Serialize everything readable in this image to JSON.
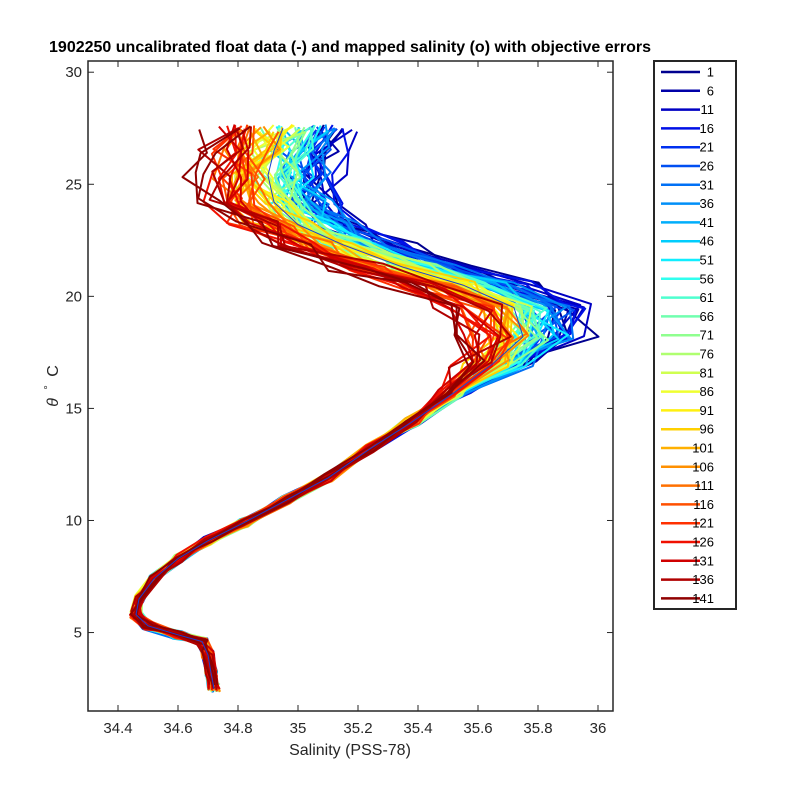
{
  "chart_data": {
    "type": "line",
    "title": "1902250 uncalibrated float data (-) and mapped salinity (o) with objective errors",
    "xlabel": "Salinity (PSS-78)",
    "ylabel_symbol": "θ",
    "ylabel_degree": "°",
    "ylabel_unit": "C",
    "xlim": [
      34.3,
      36.05
    ],
    "ylim": [
      1.5,
      30.5
    ],
    "xticks": [
      34.4,
      34.6,
      34.8,
      35,
      35.2,
      35.4,
      35.6,
      35.8,
      36
    ],
    "xtick_labels": [
      "34.4",
      "34.6",
      "34.8",
      "35",
      "35.2",
      "35.4",
      "35.6",
      "35.8",
      "36"
    ],
    "yticks": [
      5,
      10,
      15,
      20,
      25,
      30
    ],
    "ytick_labels": [
      "5",
      "10",
      "15",
      "20",
      "25",
      "30"
    ],
    "grid": false,
    "legend_position": "outside-right",
    "colormap": "jet",
    "series": [
      {
        "name": "1",
        "color": "#00008f"
      },
      {
        "name": "6",
        "color": "#0000a8"
      },
      {
        "name": "11",
        "color": "#0000c3"
      },
      {
        "name": "16",
        "color": "#0010e6"
      },
      {
        "name": "21",
        "color": "#0030f0"
      },
      {
        "name": "26",
        "color": "#004ff2"
      },
      {
        "name": "31",
        "color": "#0070f5"
      },
      {
        "name": "36",
        "color": "#008ff8"
      },
      {
        "name": "41",
        "color": "#00aefb"
      },
      {
        "name": "46",
        "color": "#00cdfd"
      },
      {
        "name": "51",
        "color": "#10eeff"
      },
      {
        "name": "56",
        "color": "#30ffef"
      },
      {
        "name": "61",
        "color": "#4fffcf"
      },
      {
        "name": "66",
        "color": "#70ffaf"
      },
      {
        "name": "71",
        "color": "#8fff8f"
      },
      {
        "name": "76",
        "color": "#afff70"
      },
      {
        "name": "81",
        "color": "#cfff50"
      },
      {
        "name": "86",
        "color": "#efff30"
      },
      {
        "name": "91",
        "color": "#fff010"
      },
      {
        "name": "96",
        "color": "#ffd000"
      },
      {
        "name": "101",
        "color": "#ffb000"
      },
      {
        "name": "106",
        "color": "#ff9000"
      },
      {
        "name": "111",
        "color": "#ff7000"
      },
      {
        "name": "116",
        "color": "#ff5000"
      },
      {
        "name": "121",
        "color": "#ff3000"
      },
      {
        "name": "126",
        "color": "#f01000"
      },
      {
        "name": "131",
        "color": "#d00000"
      },
      {
        "name": "136",
        "color": "#b00000"
      },
      {
        "name": "141",
        "color": "#900000"
      }
    ],
    "profile_shape": [
      [
        34.72,
        2.5
      ],
      [
        34.71,
        3.2
      ],
      [
        34.7,
        4.0
      ],
      [
        34.68,
        4.6
      ],
      [
        34.6,
        4.9
      ],
      [
        34.5,
        5.3
      ],
      [
        34.46,
        5.8
      ],
      [
        34.47,
        6.5
      ],
      [
        34.52,
        7.4
      ],
      [
        34.6,
        8.3
      ],
      [
        34.7,
        9.1
      ],
      [
        34.82,
        9.9
      ],
      [
        34.96,
        10.9
      ],
      [
        35.1,
        11.9
      ],
      [
        35.24,
        13.2
      ],
      [
        35.38,
        14.4
      ],
      [
        35.52,
        15.7
      ],
      [
        35.65,
        17.0
      ],
      [
        35.75,
        18.2
      ],
      [
        35.72,
        19.5
      ],
      [
        35.55,
        20.5
      ],
      [
        35.35,
        21.3
      ],
      [
        35.15,
        22.3
      ],
      [
        35.0,
        23.2
      ],
      [
        34.92,
        24.2
      ],
      [
        34.9,
        25.4
      ],
      [
        34.92,
        26.5
      ],
      [
        34.95,
        27.5
      ]
    ]
  }
}
